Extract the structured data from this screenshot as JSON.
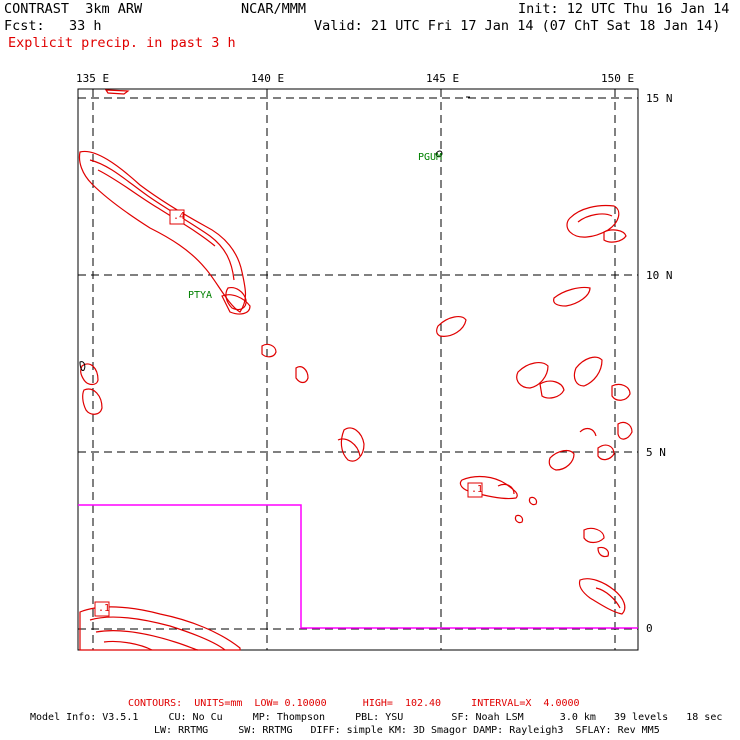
{
  "header": {
    "model": "CONTRAST  3km ARW",
    "center": "NCAR/MMM",
    "init": "Init: 12 UTC Thu 16 Jan 14",
    "fcst": "Fcst:   33 h",
    "valid": "Valid: 21 UTC Fri 17 Jan 14 (07 ChT Sat 18 Jan 14)",
    "field": "Explicit precip. in past 3 h"
  },
  "map": {
    "lon_labels": [
      "135 E",
      "140 E",
      "145 E",
      "150 E"
    ],
    "lat_labels": [
      "15 N",
      "10 N",
      "5 N",
      "0"
    ],
    "stations": [
      "PGUM",
      "PTYA"
    ],
    "contour_labels": [
      ".4",
      ".1",
      ".1"
    ],
    "colors": {
      "contour": "#e00000",
      "domain_box": "#ff00ff",
      "station": "#008000",
      "grid": "#000000"
    }
  },
  "footer": {
    "contours": "CONTOURS:  UNITS=mm  LOW= 0.10000      HIGH=  102.40     INTERVAL=X  4.0000",
    "model_info_1": "Model Info: V3.5.1     CU: No Cu     MP: Thompson     PBL: YSU        SF: Noah LSM      3.0 km   39 levels   18 sec",
    "model_info_2": "LW: RRTMG     SW: RRTMG   DIFF: simple KM: 3D Smagor DAMP: Rayleigh3  SFLAY: Rev MM5"
  }
}
